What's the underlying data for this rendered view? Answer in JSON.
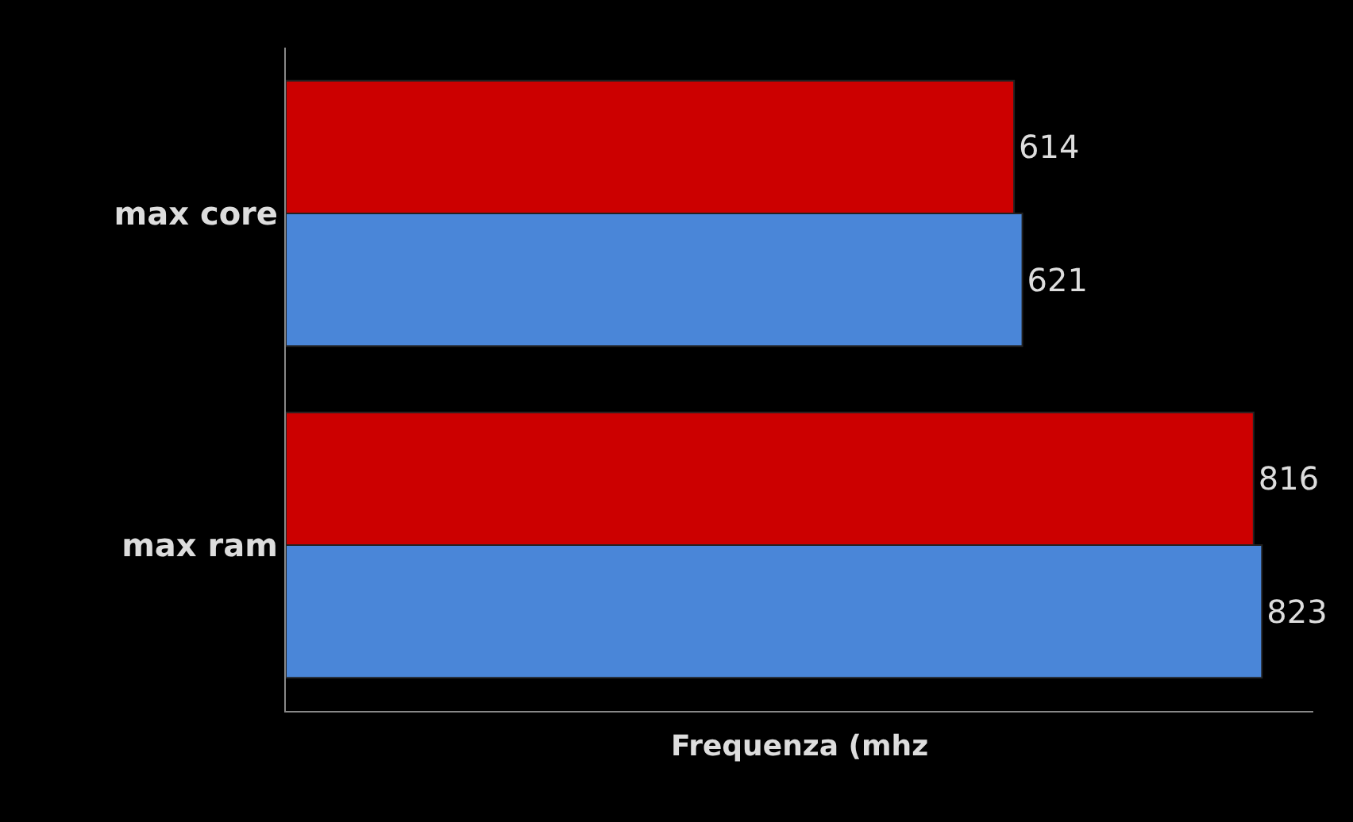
{
  "chart_data": {
    "type": "bar",
    "orientation": "horizontal",
    "xlabel": "Frequenza (mhz",
    "categories": [
      "max core",
      "max ram"
    ],
    "series": [
      {
        "color": "#cc0000",
        "values": [
          614,
          816
        ]
      },
      {
        "color": "#4a86d8",
        "values": [
          621,
          823
        ]
      }
    ],
    "data_labels": true,
    "grid": false,
    "tick_labels": "y"
  }
}
